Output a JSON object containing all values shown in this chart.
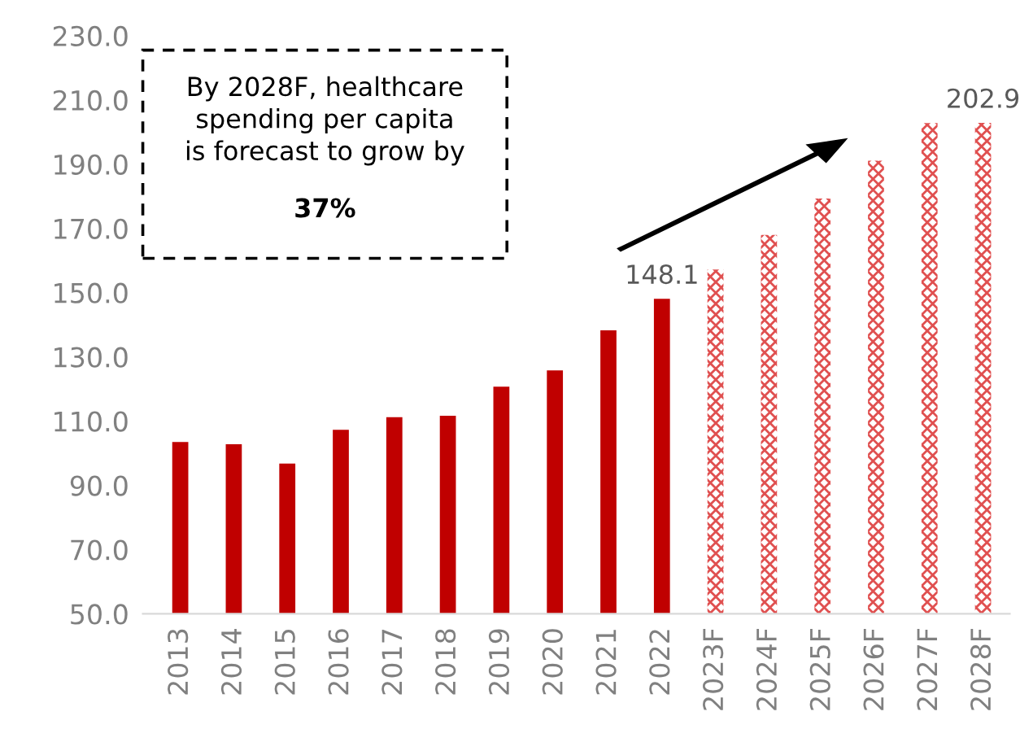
{
  "chart_data": {
    "type": "bar",
    "categories": [
      "2013",
      "2014",
      "2015",
      "2016",
      "2017",
      "2018",
      "2019",
      "2020",
      "2021",
      "2022",
      "2023F",
      "2024F",
      "2025F",
      "2026F",
      "2027F",
      "2028F"
    ],
    "series": [
      {
        "color": "#c00000",
        "values": [
          103.5,
          102.8,
          96.8,
          107.3,
          111.2,
          111.7,
          120.7,
          125.8,
          138.3,
          148.1,
          null,
          null,
          null,
          null,
          null,
          null
        ],
        "value_labels": [
          null,
          null,
          null,
          null,
          null,
          null,
          null,
          null,
          null,
          "148.1",
          null,
          null,
          null,
          null,
          null,
          null
        ]
      },
      {
        "color": "#e05050",
        "values": [
          null,
          null,
          null,
          null,
          null,
          null,
          null,
          null,
          null,
          null,
          157.2,
          168.0,
          179.3,
          191.1,
          202.8,
          202.9
        ],
        "value_labels": [
          null,
          null,
          null,
          null,
          null,
          null,
          null,
          null,
          null,
          null,
          null,
          null,
          null,
          null,
          null,
          "202.9"
        ]
      }
    ],
    "ylim": [
      50,
      230
    ],
    "yticks": [
      {
        "value": 50,
        "label": "50.0"
      },
      {
        "value": 70,
        "label": "70.0"
      },
      {
        "value": 90,
        "label": "90.0"
      },
      {
        "value": 110,
        "label": "110.0"
      },
      {
        "value": 130,
        "label": "130.0"
      },
      {
        "value": 150,
        "label": "150.0"
      },
      {
        "value": 170,
        "label": "170.0"
      },
      {
        "value": 190,
        "label": "190.0"
      },
      {
        "value": 210,
        "label": "210.0"
      },
      {
        "value": 230,
        "label": "230.0"
      }
    ],
    "grid": false,
    "legend": false,
    "annotations": [
      "By 2028F, healthcare\nspending per capita\nis forecast to grow by",
      "37%"
    ]
  }
}
